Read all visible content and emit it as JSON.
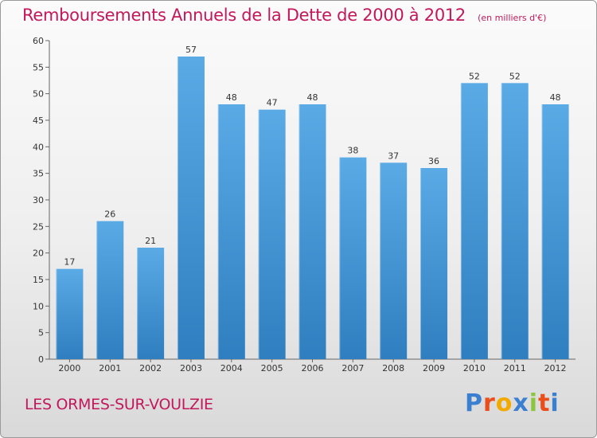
{
  "title": "Remboursements Annuels de la Dette de 2000 à 2012",
  "subtitle": "(en milliers d'€)",
  "location": "LES ORMES-SUR-VOULZIE",
  "brand": {
    "name": "Proxiti",
    "letter_colors": [
      "#3a7fd0",
      "#e94e1b",
      "#f2a900",
      "#3a7fd0",
      "#8cc63f",
      "#e94e1b",
      "#3a7fd0"
    ]
  },
  "colors": {
    "bar": "#5aaae6",
    "bar_dark": "#2f7fc0",
    "title": "#c2185b"
  },
  "chart_data": {
    "type": "bar",
    "title": "Remboursements Annuels de la Dette de 2000 à 2012",
    "subtitle": "(en milliers d'€)",
    "categories": [
      "2000",
      "2001",
      "2002",
      "2003",
      "2004",
      "2005",
      "2006",
      "2007",
      "2008",
      "2009",
      "2010",
      "2011",
      "2012"
    ],
    "values": [
      17,
      26,
      21,
      57,
      48,
      47,
      48,
      38,
      37,
      36,
      52,
      52,
      48
    ],
    "ylim": [
      0,
      60
    ],
    "yticks": [
      0,
      5,
      10,
      15,
      20,
      25,
      30,
      35,
      40,
      45,
      50,
      55,
      60
    ],
    "grid": false,
    "data_labels": true,
    "legend": "none"
  }
}
